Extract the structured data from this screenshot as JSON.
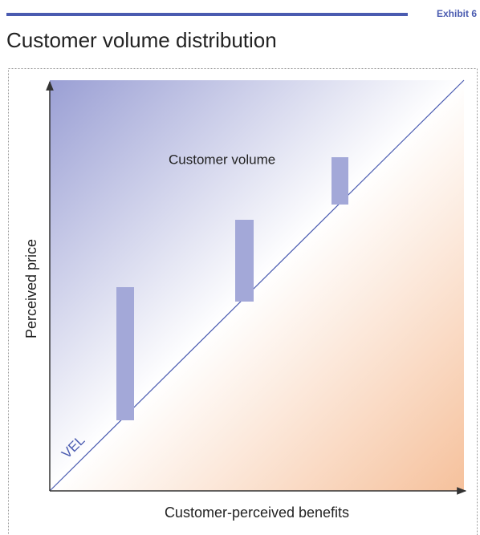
{
  "header": {
    "exhibit": "Exhibit 6",
    "title": "Customer volume distribution"
  },
  "diagram": {
    "annotation": "Customer volume",
    "y_axis_label": "Perceived price",
    "x_axis_label": "Customer-perceived benefits",
    "line_label": "VEL"
  }
}
